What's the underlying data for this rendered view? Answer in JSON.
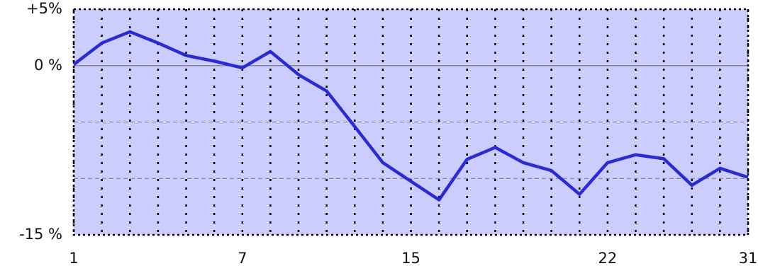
{
  "chart_data": {
    "type": "line",
    "categories": [
      "1",
      null,
      null,
      null,
      null,
      null,
      "7",
      null,
      null,
      null,
      null,
      null,
      "15",
      null,
      null,
      null,
      null,
      null,
      null,
      "22",
      null,
      null,
      null,
      null,
      "31"
    ],
    "series": [
      {
        "color": "#2b2bd4",
        "values": [
          0.1,
          2.0,
          3.0,
          2.0,
          0.9,
          0.4,
          -0.2,
          1.25,
          -0.8,
          -2.25,
          -5.4,
          -8.6,
          -10.25,
          -11.9,
          -8.3,
          -7.25,
          -8.6,
          -9.3,
          -11.4,
          -8.6,
          -7.9,
          -8.25,
          -10.6,
          -9.1,
          -9.9
        ]
      }
    ],
    "ylim": [
      -15,
      5
    ],
    "yticks": [
      {
        "value": 5,
        "label": "+5%"
      },
      {
        "value": 0,
        "label": "0 %"
      },
      {
        "value": -15,
        "label": "-15 %"
      }
    ],
    "minor_yticks": [
      -5,
      -10
    ],
    "background": "#ccccff"
  }
}
